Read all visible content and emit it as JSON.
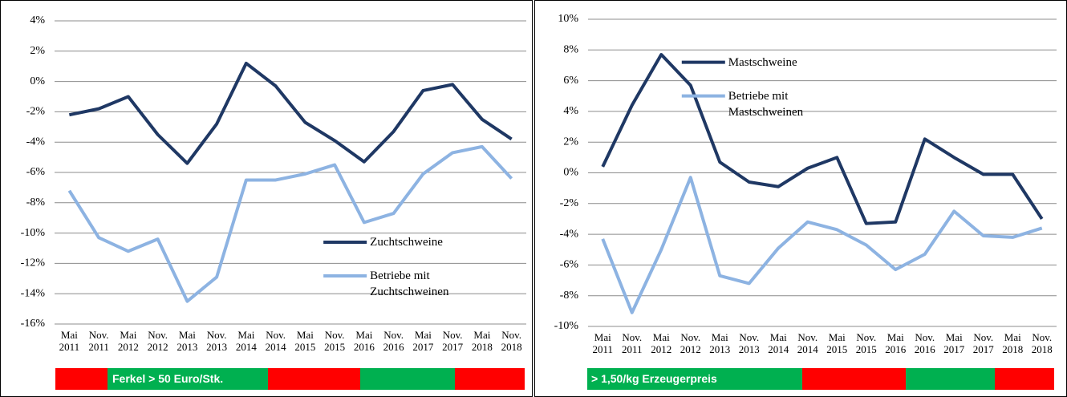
{
  "chart_data": [
    {
      "type": "line",
      "categories": [
        "Mai 2011",
        "Nov. 2011",
        "Mai 2012",
        "Nov. 2012",
        "Mai 2013",
        "Nov. 2013",
        "Mai 2014",
        "Nov. 2014",
        "Mai 2015",
        "Nov. 2015",
        "Mai 2016",
        "Nov. 2016",
        "Mai 2017",
        "Nov. 2017",
        "Mai 2018",
        "Nov. 2018"
      ],
      "series": [
        {
          "name": "Zuchtschweine",
          "color": "#1f3864",
          "values": [
            -2.2,
            -1.8,
            -1.0,
            -3.5,
            -5.4,
            -2.8,
            1.2,
            -0.3,
            -2.7,
            -3.9,
            -5.3,
            -3.3,
            -0.6,
            -0.2,
            -2.5,
            -3.8
          ]
        },
        {
          "name": "Betriebe mit Zuchtschweinen",
          "color": "#8db3e2",
          "values": [
            -7.2,
            -10.3,
            -11.2,
            -10.4,
            -14.5,
            -12.9,
            -6.5,
            -6.5,
            -6.1,
            -5.5,
            -9.3,
            -8.7,
            -6.1,
            -4.7,
            -4.3,
            -6.4
          ]
        }
      ],
      "ylim": [
        -16,
        4
      ],
      "yticks": [
        {
          "value": -16,
          "label": "-16%"
        },
        {
          "value": -14,
          "label": "-14%"
        },
        {
          "value": -12,
          "label": "-12%"
        },
        {
          "value": -10,
          "label": "-10%"
        },
        {
          "value": -8,
          "label": "-8%"
        },
        {
          "value": -6,
          "label": "-6%"
        },
        {
          "value": -4,
          "label": "-4%"
        },
        {
          "value": -2,
          "label": "-2%"
        },
        {
          "value": 0,
          "label": "0%"
        },
        {
          "value": 2,
          "label": "2%"
        },
        {
          "value": 4,
          "label": "4%"
        }
      ],
      "grid": true,
      "legend": "lower right",
      "band_label": "Ferkel > 50 Euro/Stk."
    },
    {
      "type": "line",
      "categories": [
        "Mai 2011",
        "Nov. 2011",
        "Mai 2012",
        "Nov. 2012",
        "Mai 2013",
        "Nov. 2013",
        "Mai 2014",
        "Nov. 2014",
        "Mai 2015",
        "Nov. 2015",
        "Mai 2016",
        "Nov. 2016",
        "Mai 2017",
        "Nov. 2017",
        "Mai 2018",
        "Nov. 2018"
      ],
      "series": [
        {
          "name": "Mastschweine",
          "color": "#1f3864",
          "values": [
            0.4,
            4.4,
            7.7,
            5.7,
            0.7,
            -0.6,
            -0.9,
            0.3,
            1.0,
            -3.3,
            -3.2,
            2.2,
            1.0,
            -0.1,
            -0.1,
            -3.0
          ]
        },
        {
          "name": "Betriebe mit Mastschweinen",
          "color": "#8db3e2",
          "values": [
            -4.3,
            -9.1,
            -5.0,
            -0.3,
            -6.7,
            -7.2,
            -4.9,
            -3.2,
            -3.7,
            -4.7,
            -6.3,
            -5.3,
            -2.5,
            -4.1,
            -4.2,
            -3.6
          ]
        }
      ],
      "ylim": [
        -10,
        10
      ],
      "yticks": [
        {
          "value": -10,
          "label": "-10%"
        },
        {
          "value": -8,
          "label": "-8%"
        },
        {
          "value": -6,
          "label": "-6%"
        },
        {
          "value": -4,
          "label": "-4%"
        },
        {
          "value": -2,
          "label": "-2%"
        },
        {
          "value": 0,
          "label": "0%"
        },
        {
          "value": 2,
          "label": "2%"
        },
        {
          "value": 4,
          "label": "4%"
        },
        {
          "value": 6,
          "label": "6%"
        },
        {
          "value": 8,
          "label": "8%"
        },
        {
          "value": 10,
          "label": "10%"
        }
      ],
      "grid": true,
      "legend": "upper center",
      "band_label": "> 1,50/kg Erzeugerpreis"
    }
  ]
}
